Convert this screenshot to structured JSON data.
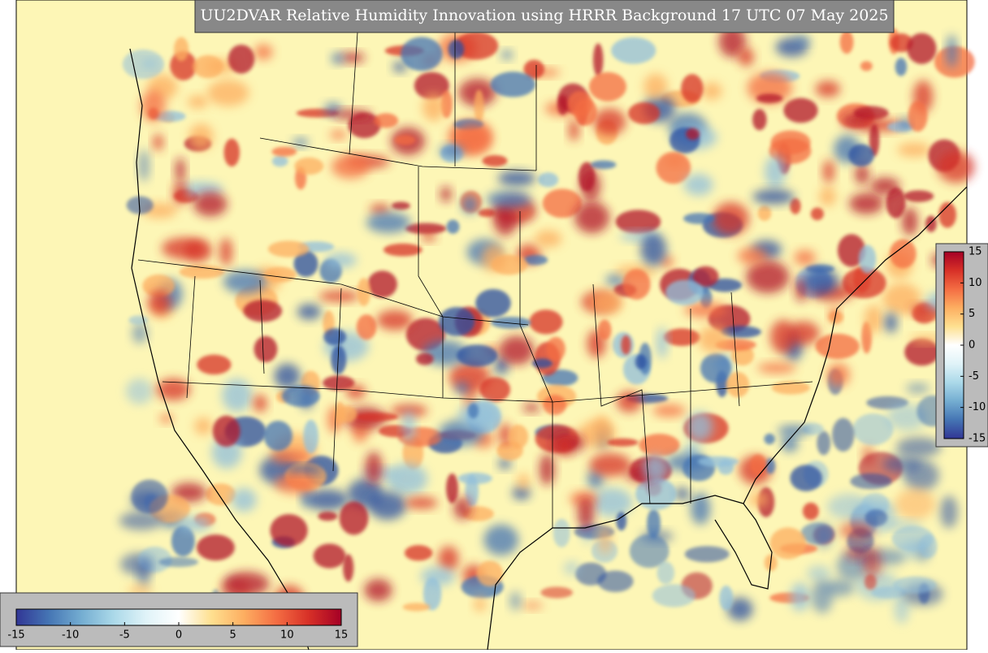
{
  "title": "UU2DVAR Relative Humidity Innovation using HRRR Background 17 UTC 07 May 2025",
  "colorbars": [
    {
      "orientation": "horizontal",
      "lim": [
        -15,
        15
      ],
      "ticks": [
        -15,
        -10,
        -5,
        0,
        5,
        10,
        15
      ],
      "colors": [
        "#313695",
        "#4575b4",
        "#74add1",
        "#abd9e9",
        "#e0f3f8",
        "#ffffff",
        "#fee090",
        "#fdae61",
        "#f46d43",
        "#d73027",
        "#a50026"
      ]
    },
    {
      "orientation": "vertical",
      "lim": [
        -15,
        15
      ],
      "ticks": [
        15,
        10,
        5,
        0,
        -5,
        -10,
        -15
      ],
      "colors": [
        "#313695",
        "#4575b4",
        "#74add1",
        "#abd9e9",
        "#e0f3f8",
        "#ffffff",
        "#fee090",
        "#fdae61",
        "#f46d43",
        "#d73027",
        "#a50026"
      ]
    }
  ]
}
